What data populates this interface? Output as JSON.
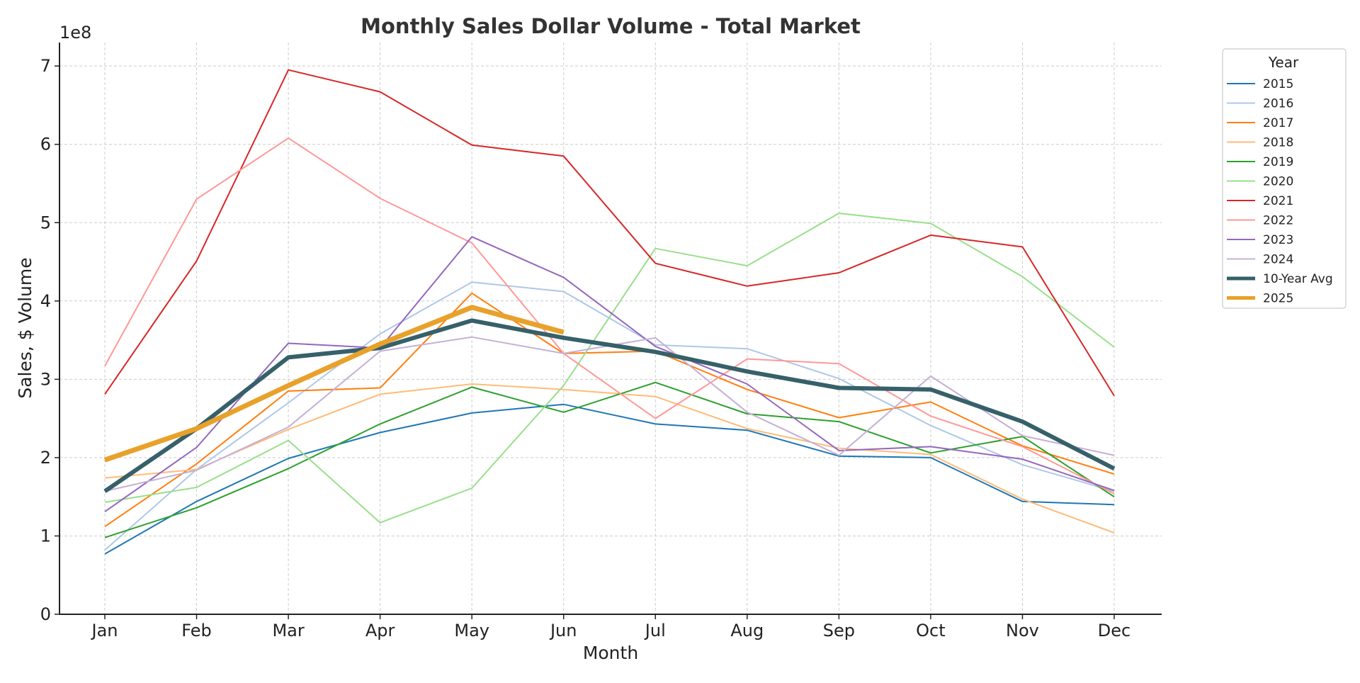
{
  "chart_data": {
    "type": "line",
    "title": "Monthly Sales Dollar Volume - Total Market",
    "xlabel": "Month",
    "ylabel": "Sales, $ Volume",
    "y_exponent_label": "1e8",
    "categories": [
      "Jan",
      "Feb",
      "Mar",
      "Apr",
      "May",
      "Jun",
      "Jul",
      "Aug",
      "Sep",
      "Oct",
      "Nov",
      "Dec"
    ],
    "ylim": [
      0,
      730000000
    ],
    "yticks": [
      0,
      100000000,
      200000000,
      300000000,
      400000000,
      500000000,
      600000000,
      700000000
    ],
    "ytick_labels": [
      "0",
      "1",
      "2",
      "3",
      "4",
      "5",
      "6",
      "7"
    ],
    "grid": true,
    "legend": {
      "title": "Year",
      "placement": "outside-top-right"
    },
    "series": [
      {
        "name": "2015",
        "color": "#1f77b4",
        "width": 2,
        "values": [
          77000000,
          144000000,
          199000000,
          232000000,
          257000000,
          268000000,
          243000000,
          235000000,
          202000000,
          200000000,
          144000000,
          140000000
        ]
      },
      {
        "name": "2016",
        "color": "#aec7e8",
        "width": 2,
        "values": [
          82000000,
          185000000,
          270000000,
          358000000,
          424000000,
          412000000,
          344000000,
          339000000,
          301000000,
          241000000,
          191000000,
          157000000
        ]
      },
      {
        "name": "2017",
        "color": "#ff7f0e",
        "width": 2,
        "values": [
          112000000,
          192000000,
          285000000,
          289000000,
          410000000,
          333000000,
          336000000,
          287000000,
          251000000,
          271000000,
          215000000,
          179000000
        ]
      },
      {
        "name": "2018",
        "color": "#ffbb78",
        "width": 2,
        "values": [
          174000000,
          185000000,
          236000000,
          281000000,
          294000000,
          287000000,
          278000000,
          237000000,
          212000000,
          204000000,
          147000000,
          104000000
        ]
      },
      {
        "name": "2019",
        "color": "#2ca02c",
        "width": 2,
        "values": [
          98000000,
          136000000,
          186000000,
          243000000,
          290000000,
          258000000,
          296000000,
          256000000,
          246000000,
          206000000,
          227000000,
          150000000
        ]
      },
      {
        "name": "2020",
        "color": "#98df8a",
        "width": 2,
        "values": [
          143000000,
          162000000,
          222000000,
          117000000,
          161000000,
          292000000,
          467000000,
          445000000,
          512000000,
          499000000,
          431000000,
          341000000
        ]
      },
      {
        "name": "2021",
        "color": "#d62728",
        "width": 2,
        "values": [
          281000000,
          451000000,
          695000000,
          667000000,
          599000000,
          585000000,
          448000000,
          419000000,
          436000000,
          484000000,
          469000000,
          279000000
        ]
      },
      {
        "name": "2022",
        "color": "#ff9896",
        "width": 2,
        "values": [
          317000000,
          530000000,
          608000000,
          531000000,
          474000000,
          333000000,
          250000000,
          326000000,
          320000000,
          253000000,
          214000000,
          154000000
        ]
      },
      {
        "name": "2023",
        "color": "#9467bd",
        "width": 2,
        "values": [
          131000000,
          213000000,
          346000000,
          340000000,
          482000000,
          430000000,
          342000000,
          294000000,
          209000000,
          214000000,
          198000000,
          158000000
        ]
      },
      {
        "name": "2024",
        "color": "#c5b0d5",
        "width": 2,
        "values": [
          157000000,
          184000000,
          239000000,
          336000000,
          354000000,
          333000000,
          353000000,
          258000000,
          203000000,
          304000000,
          228000000,
          203000000
        ]
      },
      {
        "name": "10-Year Avg",
        "color": "#36606a",
        "width": 6,
        "values": [
          157000000,
          237000000,
          328000000,
          340000000,
          375000000,
          353000000,
          335000000,
          310000000,
          289000000,
          287000000,
          246000000,
          186000000
        ]
      },
      {
        "name": "2025",
        "color": "#e8a12a",
        "width": 7,
        "values": [
          197000000,
          237000000,
          292000000,
          345000000,
          392000000,
          360000000,
          null,
          null,
          null,
          null,
          null,
          null
        ]
      }
    ]
  }
}
